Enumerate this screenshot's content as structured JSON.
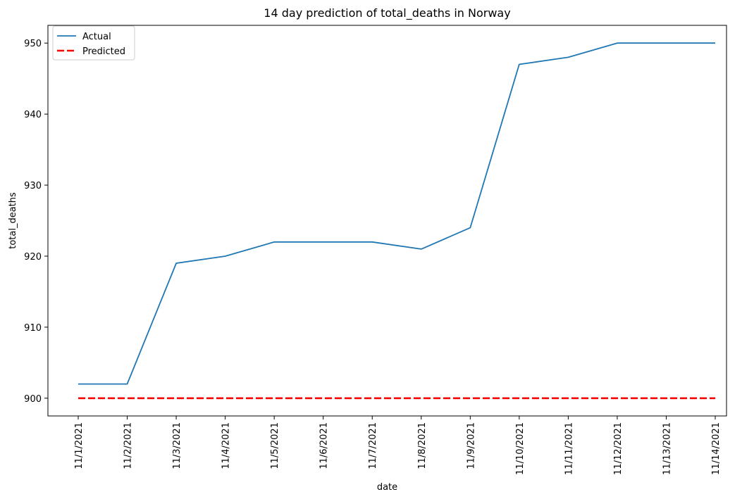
{
  "chart_data": {
    "type": "line",
    "title": "14 day prediction of total_deaths in Norway",
    "xlabel": "date",
    "ylabel": "total_deaths",
    "x": [
      "11/1/2021",
      "11/2/2021",
      "11/3/2021",
      "11/4/2021",
      "11/5/2021",
      "11/6/2021",
      "11/7/2021",
      "11/8/2021",
      "11/9/2021",
      "11/10/2021",
      "11/11/2021",
      "11/12/2021",
      "11/13/2021",
      "11/14/2021"
    ],
    "ylim": [
      897.5,
      952.5
    ],
    "yticks": [
      900,
      910,
      920,
      930,
      940,
      950
    ],
    "grid": false,
    "legend_position": "top-left",
    "series": [
      {
        "name": "Actual",
        "color": "#1f77b4",
        "style": "solid",
        "values": [
          902,
          902,
          919,
          920,
          922,
          922,
          922,
          921,
          924,
          947,
          948,
          950,
          950,
          950
        ]
      },
      {
        "name": "Predicted",
        "color": "#ff0000",
        "style": "dashed",
        "values": [
          900,
          900,
          900,
          900,
          900,
          900,
          900,
          900,
          900,
          900,
          900,
          900,
          900,
          900
        ]
      }
    ]
  }
}
